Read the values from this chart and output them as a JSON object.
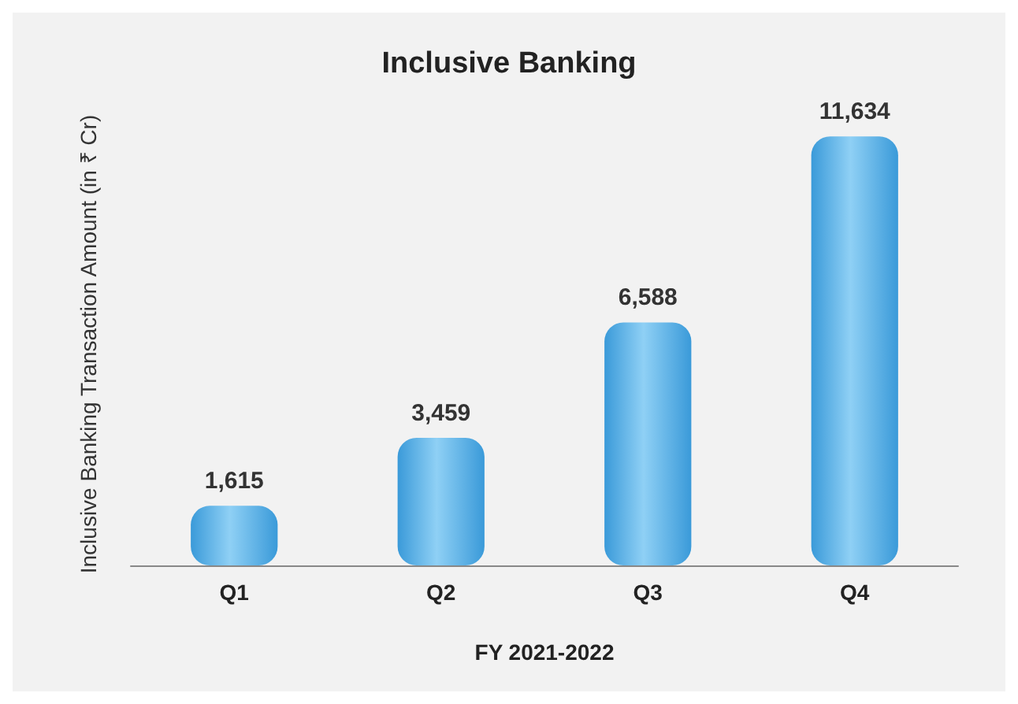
{
  "chart_data": {
    "type": "bar",
    "title": "Inclusive Banking",
    "xlabel": "FY 2021-2022",
    "ylabel": "Inclusive Banking Transaction Amount (in ₹ Cr)",
    "categories": [
      "Q1",
      "Q2",
      "Q3",
      "Q4"
    ],
    "values": [
      1615,
      3459,
      6588,
      11634
    ],
    "value_labels": [
      "1,615",
      "3,459",
      "6,588",
      "11,634"
    ],
    "color": "#3a9ad9",
    "grid": false
  }
}
